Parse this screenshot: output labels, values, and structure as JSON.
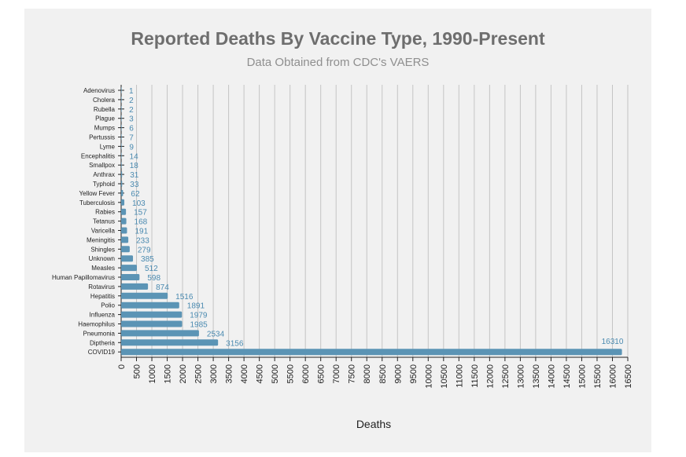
{
  "chart_data": {
    "type": "bar",
    "orientation": "horizontal",
    "title": "Reported Deaths By Vaccine Type, 1990-Present",
    "subtitle": "Data Obtained from CDC's VAERS",
    "xlabel": "Deaths",
    "ylabel": "",
    "xlim": [
      0,
      16500
    ],
    "x_ticks": [
      0,
      500,
      1000,
      1500,
      2000,
      2500,
      3000,
      3500,
      4000,
      4500,
      5000,
      5500,
      6000,
      6500,
      7000,
      7500,
      8000,
      8500,
      9000,
      9500,
      10000,
      10500,
      11000,
      11500,
      12000,
      12500,
      13000,
      13500,
      14000,
      14500,
      15000,
      15500,
      16000,
      16500
    ],
    "grid": "vertical",
    "bar_color": "#5b94b5",
    "label_color": "#4a8ab0",
    "categories": [
      "Adenovirus",
      "Cholera",
      "Rubella",
      "Plague",
      "Mumps",
      "Pertussis",
      "Lyme",
      "Encephalitis",
      "Smallpox",
      "Anthrax",
      "Typhoid",
      "Yellow Fever",
      "Tuberculosis",
      "Rabies",
      "Tetanus",
      "Varicella",
      "Meningitis",
      "Shingles",
      "Unknown",
      "Measles",
      "Human Papillomavirus",
      "Rotavirus",
      "Hepatitis",
      "Polio",
      "Influenza",
      "Haemophilus",
      "Pneumonia",
      "Diptheria",
      "COVID19"
    ],
    "values": [
      1,
      2,
      2,
      3,
      6,
      7,
      9,
      14,
      18,
      31,
      33,
      62,
      103,
      157,
      168,
      191,
      233,
      279,
      385,
      512,
      598,
      874,
      1516,
      1891,
      1979,
      1985,
      2534,
      3156,
      16310
    ]
  }
}
